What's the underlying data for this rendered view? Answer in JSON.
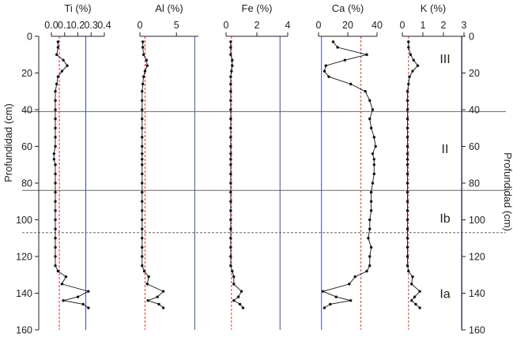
{
  "chart_data": {
    "type": "line",
    "ylabel_left": "Profundidad (cm)",
    "ylabel_right": "Profundidad (cm)",
    "ylim": [
      0,
      160
    ],
    "yticks": [
      0,
      20,
      40,
      60,
      80,
      100,
      120,
      140,
      160
    ],
    "boundaries": [
      {
        "depth": 41,
        "style": "solid"
      },
      {
        "depth": 84,
        "style": "solid"
      },
      {
        "depth": 107,
        "style": "dashed"
      }
    ],
    "zones": [
      {
        "label": "III",
        "depth": 12
      },
      {
        "label": "II",
        "depth": 61
      },
      {
        "label": "Ib",
        "depth": 99
      },
      {
        "label": "Ia",
        "depth": 140
      }
    ],
    "colors": {
      "series": "#111111",
      "reference_red": "#e03030",
      "reference_blue": "#3a4fa0",
      "boundary": "#666666"
    },
    "panels": [
      {
        "title": "Ti (%)",
        "xlim": [
          0,
          0.4
        ],
        "xticks": [
          0,
          0.1,
          0.2,
          0.3,
          0.4
        ],
        "xtick_labels": [
          "0.0",
          "0.1",
          "0.2",
          "0.3",
          "0.4"
        ],
        "ref_red": 0.06,
        "ref_blue": 0.26,
        "depth": [
          3,
          6,
          10,
          13,
          16,
          19,
          22,
          26,
          30,
          35,
          40,
          45,
          50,
          55,
          60,
          64,
          67,
          70,
          75,
          80,
          85,
          90,
          95,
          100,
          105,
          110,
          115,
          120,
          125,
          128,
          131,
          135,
          139,
          142,
          144,
          146,
          148
        ],
        "values": [
          0.05,
          0.05,
          0.04,
          0.09,
          0.12,
          0.08,
          0.05,
          0.04,
          0.03,
          0.03,
          0.03,
          0.03,
          0.03,
          0.03,
          0.03,
          0.02,
          0.02,
          0.03,
          0.03,
          0.03,
          0.03,
          0.03,
          0.03,
          0.03,
          0.03,
          0.03,
          0.03,
          0.03,
          0.03,
          0.05,
          0.11,
          0.08,
          0.28,
          0.2,
          0.09,
          0.24,
          0.28
        ]
      },
      {
        "title": "Al (%)",
        "xlim": [
          0,
          8
        ],
        "xticks": [
          0,
          5
        ],
        "xtick_labels": [
          "0",
          "5"
        ],
        "ref_red": 0.7,
        "ref_blue": 7.5,
        "depth": [
          3,
          6,
          10,
          13,
          16,
          19,
          22,
          26,
          30,
          35,
          40,
          45,
          50,
          55,
          60,
          64,
          67,
          70,
          75,
          80,
          85,
          90,
          95,
          100,
          105,
          110,
          115,
          120,
          125,
          128,
          131,
          135,
          139,
          142,
          144,
          146,
          148
        ],
        "values": [
          0.4,
          0.4,
          0.5,
          0.9,
          1.0,
          0.7,
          0.5,
          0.4,
          0.3,
          0.3,
          0.3,
          0.3,
          0.3,
          0.3,
          0.3,
          0.3,
          0.3,
          0.3,
          0.3,
          0.3,
          0.3,
          0.3,
          0.3,
          0.3,
          0.3,
          0.3,
          0.3,
          0.3,
          0.3,
          0.6,
          1.2,
          1.0,
          3.2,
          2.4,
          1.1,
          2.6,
          3.2
        ]
      },
      {
        "title": "Fe (%)",
        "xlim": [
          0,
          4
        ],
        "xticks": [
          0,
          2,
          4
        ],
        "xtick_labels": [
          "0",
          "2",
          "4"
        ],
        "ref_red": 0.35,
        "ref_blue": 3.5,
        "depth": [
          3,
          6,
          10,
          13,
          16,
          19,
          22,
          26,
          30,
          35,
          40,
          45,
          50,
          55,
          60,
          64,
          67,
          70,
          75,
          80,
          85,
          90,
          95,
          100,
          105,
          110,
          115,
          120,
          125,
          128,
          131,
          135,
          139,
          142,
          144,
          146,
          148
        ],
        "values": [
          0.3,
          0.3,
          0.3,
          0.4,
          0.4,
          0.35,
          0.3,
          0.3,
          0.3,
          0.3,
          0.3,
          0.3,
          0.3,
          0.3,
          0.3,
          0.3,
          0.3,
          0.3,
          0.3,
          0.3,
          0.3,
          0.3,
          0.3,
          0.3,
          0.3,
          0.3,
          0.3,
          0.3,
          0.3,
          0.4,
          0.5,
          0.5,
          1.0,
          0.8,
          0.5,
          0.9,
          1.1
        ]
      },
      {
        "title": "Ca (%)",
        "xlim": [
          0,
          40
        ],
        "xticks": [
          0,
          20,
          40
        ],
        "xtick_labels": [
          "0",
          "20",
          "40"
        ],
        "ref_red": 29,
        "ref_blue": 2,
        "depth": [
          3,
          6,
          10,
          13,
          16,
          19,
          22,
          26,
          30,
          35,
          40,
          45,
          50,
          55,
          60,
          64,
          67,
          70,
          75,
          80,
          85,
          90,
          95,
          100,
          105,
          110,
          115,
          120,
          125,
          128,
          131,
          135,
          139,
          142,
          144,
          146,
          148
        ],
        "values": [
          10,
          13,
          33,
          18,
          5,
          4,
          7,
          22,
          32,
          35,
          37,
          35,
          36,
          38,
          39,
          37,
          38,
          38,
          38,
          37,
          36,
          36,
          36,
          35,
          35,
          34,
          36,
          35,
          35,
          33,
          25,
          21,
          3,
          12,
          22,
          8,
          4
        ]
      },
      {
        "title": "K (%)",
        "xlim": [
          0,
          3
        ],
        "xticks": [
          0,
          1,
          2,
          3
        ],
        "xtick_labels": [
          "0",
          "1",
          "2",
          "3"
        ],
        "ref_red": 0.3,
        "ref_blue": 2.9,
        "depth": [
          3,
          6,
          10,
          13,
          16,
          19,
          22,
          26,
          30,
          35,
          40,
          45,
          50,
          55,
          60,
          64,
          67,
          70,
          75,
          80,
          85,
          90,
          95,
          100,
          105,
          110,
          115,
          120,
          125,
          128,
          131,
          135,
          139,
          142,
          144,
          146,
          148
        ],
        "values": [
          0.3,
          0.3,
          0.4,
          0.55,
          0.75,
          0.5,
          0.35,
          0.3,
          0.25,
          0.25,
          0.25,
          0.25,
          0.25,
          0.25,
          0.25,
          0.25,
          0.25,
          0.25,
          0.25,
          0.25,
          0.25,
          0.25,
          0.25,
          0.25,
          0.25,
          0.25,
          0.25,
          0.25,
          0.25,
          0.3,
          0.5,
          0.45,
          0.85,
          0.6,
          0.45,
          0.65,
          0.85
        ]
      }
    ]
  }
}
